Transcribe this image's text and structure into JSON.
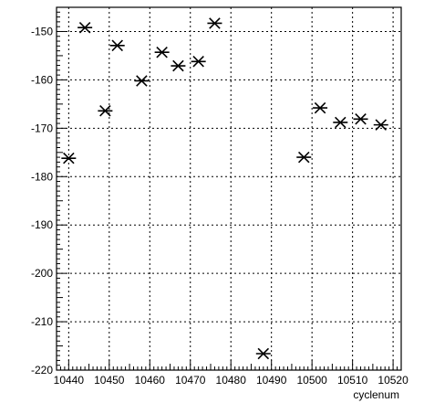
{
  "chart_data": {
    "type": "scatter",
    "marker": "asterisk",
    "xlabel": "cyclenum",
    "ylabel": "",
    "xlim": [
      10437,
      10522
    ],
    "ylim": [
      -220,
      -145
    ],
    "xticks": [
      10440,
      10450,
      10460,
      10470,
      10480,
      10490,
      10500,
      10510,
      10520
    ],
    "yticks": [
      -150,
      -160,
      -170,
      -180,
      -190,
      -200,
      -210,
      -220
    ],
    "grid": true,
    "points": [
      {
        "x": 10440,
        "y": -176.2
      },
      {
        "x": 10444,
        "y": -149.2
      },
      {
        "x": 10449,
        "y": -166.4
      },
      {
        "x": 10452,
        "y": -152.9
      },
      {
        "x": 10458,
        "y": -160.2
      },
      {
        "x": 10463,
        "y": -154.3
      },
      {
        "x": 10467,
        "y": -157.1
      },
      {
        "x": 10472,
        "y": -156.2
      },
      {
        "x": 10476,
        "y": -148.3
      },
      {
        "x": 10488,
        "y": -216.6
      },
      {
        "x": 10498,
        "y": -176.0
      },
      {
        "x": 10502,
        "y": -165.8
      },
      {
        "x": 10507,
        "y": -168.8
      },
      {
        "x": 10512,
        "y": -168.1
      },
      {
        "x": 10517,
        "y": -169.3
      }
    ]
  }
}
